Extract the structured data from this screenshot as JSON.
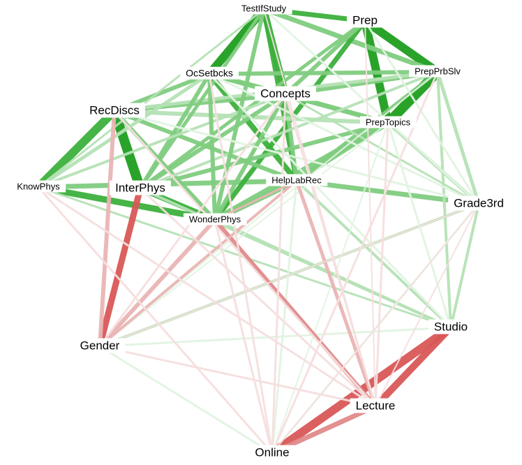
{
  "nodes": [
    {
      "label": "TestIfStudy"
    },
    {
      "label": "Prep"
    },
    {
      "label": "PrepPrbSlv"
    },
    {
      "label": "OcSetbcks"
    },
    {
      "label": "Concepts"
    },
    {
      "label": "RecDiscs"
    },
    {
      "label": "PrepTopics"
    },
    {
      "label": "KnowPhys"
    },
    {
      "label": "InterPhys"
    },
    {
      "label": "HelpLabRec"
    },
    {
      "label": "WonderPhys"
    },
    {
      "label": "Grade3rd"
    },
    {
      "label": "Studio"
    },
    {
      "label": "Gender"
    },
    {
      "label": "Lecture"
    },
    {
      "label": "Online"
    }
  ]
}
